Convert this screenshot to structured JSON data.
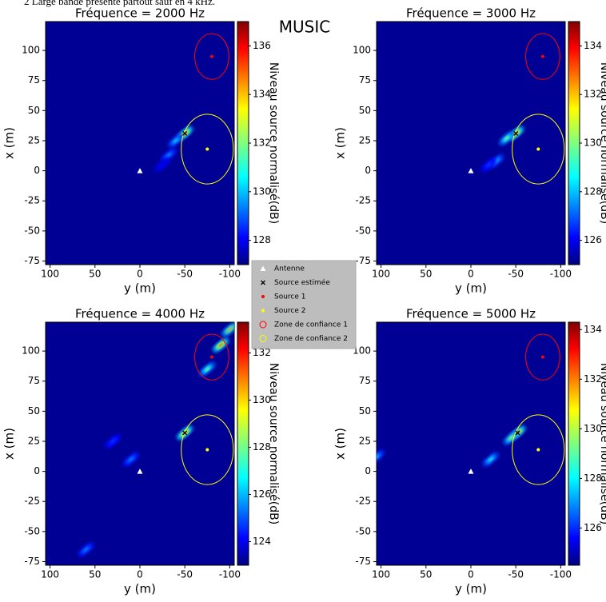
{
  "caption": "2 Large bande présente partout sauf en 4 kHz.",
  "suptitle": "MUSIC",
  "markers": [
    {
      "name": "Antenne",
      "color": "#ffffff",
      "symbol": "triangle",
      "y": 0,
      "x": 0
    },
    {
      "name": "Source 1",
      "color": "#ff0000",
      "symbol": "dot",
      "y": -80,
      "x": 95
    },
    {
      "name": "Source 2",
      "color": "#ffff00",
      "symbol": "dot",
      "y": -75,
      "x": 18
    }
  ],
  "estimate_name": "Source estimée",
  "estimate_color": "#000000",
  "zones": [
    {
      "name": "Zone de confiance 1",
      "color": "#ff0000",
      "y": -80,
      "x": 95,
      "radius": 19
    },
    {
      "name": "Zone de confiance 2",
      "color": "#ffff00",
      "y": -75,
      "x": 18,
      "radius": 29
    }
  ],
  "chart_data": [
    {
      "type": "heatmap",
      "title": "Fréquence = 2000 Hz",
      "xlabel": "y (m)",
      "ylabel": "x (m)",
      "xlim": [
        105,
        -105
      ],
      "ylim": [
        -78,
        124
      ],
      "xticks": [
        100,
        50,
        0,
        -50,
        -100
      ],
      "yticks": [
        100,
        75,
        50,
        25,
        0,
        -25,
        -50,
        -75
      ],
      "clim": [
        127,
        137
      ],
      "cticks": [
        128,
        130,
        132,
        134,
        136
      ],
      "colorbar_label": "Niveau source normalisé(dB)",
      "estimate": {
        "y": -50,
        "x": 31
      },
      "peaks": [
        {
          "y": -50,
          "x": 31,
          "level": 137
        },
        {
          "y": -40,
          "x": 25,
          "level": 131
        },
        {
          "y": -32,
          "x": 13,
          "level": 130
        },
        {
          "y": -25,
          "x": 5,
          "level": 128
        }
      ]
    },
    {
      "type": "heatmap",
      "title": "Fréquence = 3000 Hz",
      "xlabel": "y (m)",
      "ylabel": "x (m)",
      "xlim": [
        105,
        -105
      ],
      "ylim": [
        -78,
        124
      ],
      "xticks": [
        100,
        50,
        0,
        -50,
        -100
      ],
      "yticks": [
        100,
        75,
        50,
        25,
        0,
        -25,
        -50,
        -75
      ],
      "clim": [
        125,
        135
      ],
      "cticks": [
        126,
        128,
        130,
        132,
        134
      ],
      "colorbar_label": "Niveau source normalisé(dB)",
      "estimate": {
        "y": -50,
        "x": 31
      },
      "peaks": [
        {
          "y": -50,
          "x": 31,
          "level": 135
        },
        {
          "y": -40,
          "x": 27,
          "level": 131
        },
        {
          "y": -28,
          "x": 8,
          "level": 129
        },
        {
          "y": -20,
          "x": 5,
          "level": 127
        }
      ]
    },
    {
      "type": "heatmap",
      "title": "Fréquence = 4000 Hz",
      "xlabel": "y (m)",
      "ylabel": "x (m)",
      "xlim": [
        105,
        -105
      ],
      "ylim": [
        -78,
        124
      ],
      "xticks": [
        100,
        50,
        0,
        -50,
        -100
      ],
      "yticks": [
        100,
        75,
        50,
        25,
        0,
        -25,
        -50,
        -75
      ],
      "clim": [
        123,
        133.3
      ],
      "cticks": [
        124,
        126,
        128,
        130,
        132
      ],
      "colorbar_label": "Niveau source normalisé(dB)",
      "estimate": {
        "y": -50,
        "x": 32
      },
      "peaks": [
        {
          "y": -50,
          "x": 32,
          "level": 133
        },
        {
          "y": -90,
          "x": 105,
          "level": 133
        },
        {
          "y": -100,
          "x": 118,
          "level": 131
        },
        {
          "y": -75,
          "x": 85,
          "level": 129
        },
        {
          "y": 10,
          "x": 10,
          "level": 126
        },
        {
          "y": 60,
          "x": -65,
          "level": 126
        },
        {
          "y": 30,
          "x": 25,
          "level": 125
        }
      ]
    },
    {
      "type": "heatmap",
      "title": "Fréquence = 5000 Hz",
      "xlabel": "y (m)",
      "ylabel": "x (m)",
      "xlim": [
        105,
        -105
      ],
      "ylim": [
        -78,
        124
      ],
      "xticks": [
        100,
        50,
        0,
        -50,
        -100
      ],
      "yticks": [
        100,
        75,
        50,
        25,
        0,
        -25,
        -50,
        -75
      ],
      "clim": [
        124.5,
        134.3
      ],
      "cticks": [
        126,
        128,
        130,
        132,
        134
      ],
      "colorbar_label": "Niveau source normalisé(dB)",
      "estimate": {
        "y": -52,
        "x": 32
      },
      "peaks": [
        {
          "y": -52,
          "x": 32,
          "level": 134
        },
        {
          "y": -45,
          "x": 28,
          "level": 131
        },
        {
          "y": 105,
          "x": 12,
          "level": 128
        },
        {
          "y": -22,
          "x": 10,
          "level": 129
        }
      ]
    }
  ]
}
